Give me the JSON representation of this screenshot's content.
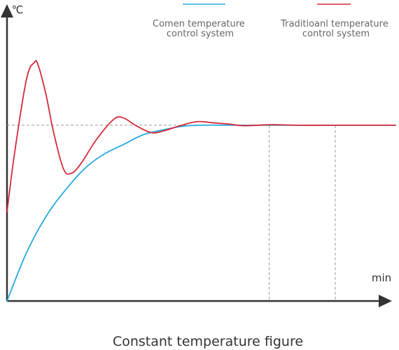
{
  "chart_data": {
    "type": "line",
    "title": "Constant temperature figure",
    "ylabel": "℃",
    "xlabel": "min",
    "grid": false,
    "legend_position": "top-right",
    "y_axis_ticks_labeled": false,
    "x_axis_ticks_labeled": false,
    "setpoint_reference_line": {
      "style": "dashed",
      "color": "#999999",
      "relative_level": 0.73
    },
    "series": [
      {
        "name": "Comen temperature control system",
        "color": "#29A8E0",
        "shape": "smooth exponential rise, no overshoot",
        "relative_points": [
          [
            0.0,
            0.0
          ],
          [
            0.05,
            0.2
          ],
          [
            0.1,
            0.35
          ],
          [
            0.15,
            0.46
          ],
          [
            0.2,
            0.55
          ],
          [
            0.25,
            0.61
          ],
          [
            0.3,
            0.65
          ],
          [
            0.35,
            0.69
          ],
          [
            0.4,
            0.71
          ],
          [
            0.45,
            0.725
          ],
          [
            0.5,
            0.73
          ],
          [
            0.6,
            0.73
          ],
          [
            0.7,
            0.73
          ],
          [
            0.8,
            0.73
          ],
          [
            1.0,
            0.73
          ]
        ]
      },
      {
        "name": "Traditioanl temperature control system",
        "color": "#D42A3A",
        "shape": "damped oscillation settling to setpoint",
        "relative_points": [
          [
            0.0,
            0.37
          ],
          [
            0.02,
            0.62
          ],
          [
            0.05,
            0.92
          ],
          [
            0.07,
            0.99
          ],
          [
            0.08,
            0.98
          ],
          [
            0.1,
            0.86
          ],
          [
            0.12,
            0.7
          ],
          [
            0.145,
            0.55
          ],
          [
            0.165,
            0.53
          ],
          [
            0.19,
            0.57
          ],
          [
            0.23,
            0.67
          ],
          [
            0.275,
            0.755
          ],
          [
            0.3,
            0.76
          ],
          [
            0.33,
            0.73
          ],
          [
            0.37,
            0.7
          ],
          [
            0.4,
            0.705
          ],
          [
            0.45,
            0.73
          ],
          [
            0.49,
            0.745
          ],
          [
            0.53,
            0.74
          ],
          [
            0.57,
            0.735
          ],
          [
            0.61,
            0.728
          ],
          [
            0.68,
            0.732
          ],
          [
            0.75,
            0.73
          ],
          [
            0.85,
            0.73
          ],
          [
            1.0,
            0.73
          ]
        ]
      }
    ],
    "vertical_markers": [
      {
        "style": "dashed",
        "color": "#999999",
        "relative_x": 0.675
      },
      {
        "style": "dashed",
        "color": "#999999",
        "relative_x": 0.845
      }
    ]
  }
}
